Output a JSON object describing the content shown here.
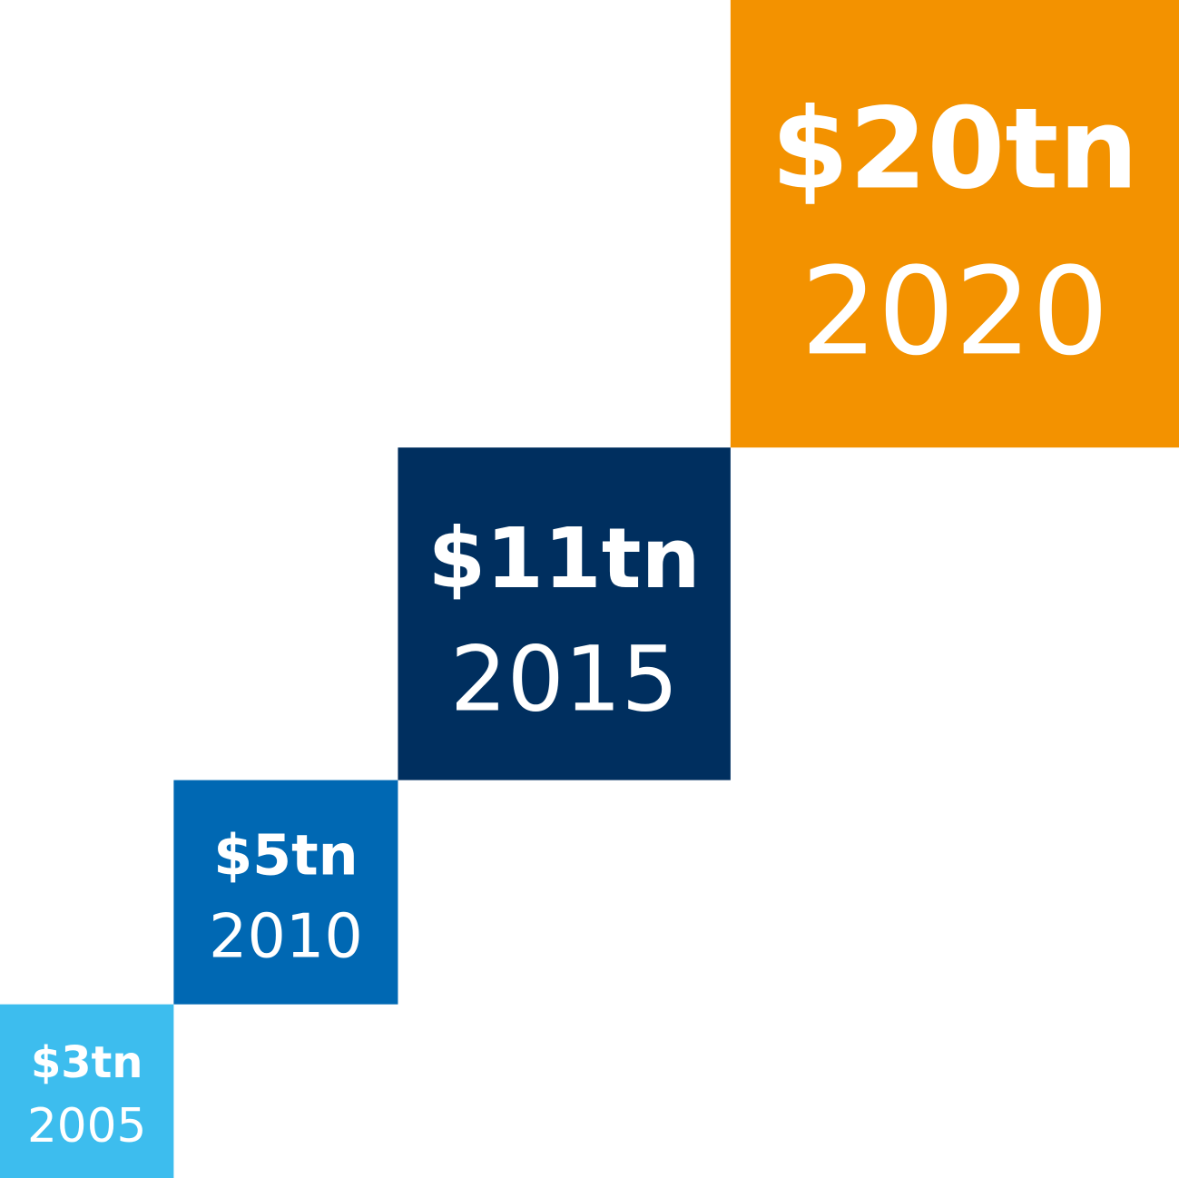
{
  "chart_data": {
    "type": "square-step",
    "categories": [
      "2005",
      "2010",
      "2015",
      "2020"
    ],
    "values": [
      3,
      5,
      11,
      20
    ],
    "value_labels": [
      "$3tn",
      "$5tn",
      "$11tn",
      "$20tn"
    ],
    "colors": [
      "#3dbdee",
      "#0068b3",
      "#002f5f",
      "#f39200"
    ]
  }
}
